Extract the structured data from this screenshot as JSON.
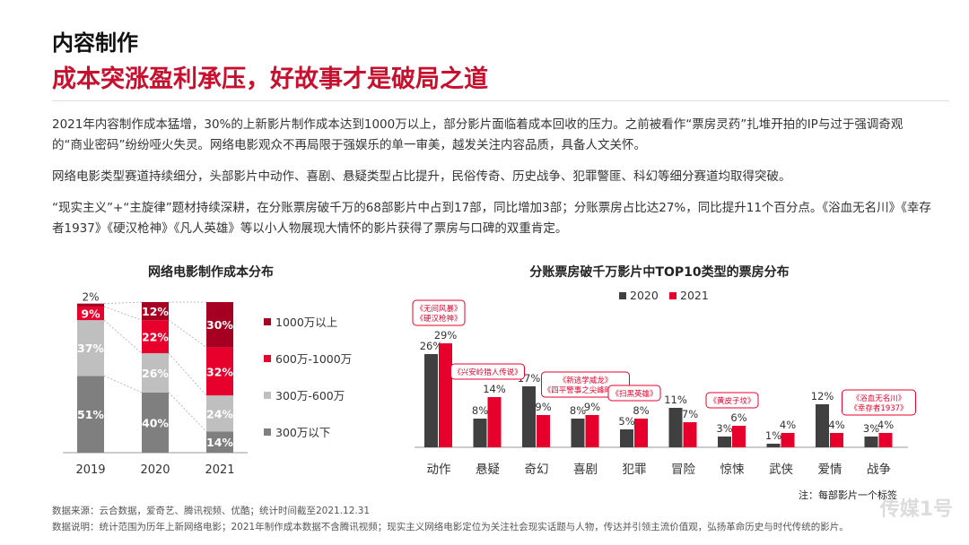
{
  "header": {
    "section": "内容制作",
    "headline": "成本突涨盈利承压，好故事才是破局之道"
  },
  "paragraphs": [
    "2021年内容制作成本猛增，30%的上新影片制作成本达到1000万以上，部分影片面临着成本回收的压力。之前被看作“票房灵药”扎堆开拍的IP与过于强调奇观的“商业密码”纷纷哑火失灵。网络电影观众不再局限于强娱乐的单一审美，越发关注内容品质，具备人文关怀。",
    "网络电影类型赛道持续细分，头部影片中动作、喜剧、悬疑类型占比提升，民俗传奇、历史战争、犯罪警匪、科幻等细分赛道均取得突破。",
    "“现实主义”+“主旋律”题材持续深耕，在分账票房破千万的68部影片中占到17部，同比增加3部；分账票房占比达27%，同比提升11个百分点。《浴血无名川》《幸存者1937》《硬汉枪神》《凡人英雄》等以小人物展现大情怀的影片获得了票房与口碑的双重肯定。"
  ],
  "chart_data": [
    {
      "type": "bar",
      "stacked": true,
      "title": "网络电影制作成本分布",
      "categories": [
        "2019",
        "2020",
        "2021"
      ],
      "series": [
        {
          "name": "300万以下",
          "values": [
            51,
            40,
            14
          ],
          "labels": [
            "51%",
            "40%",
            "14%"
          ],
          "color": "#7f7f7f"
        },
        {
          "name": "300万-600万",
          "values": [
            37,
            26,
            24
          ],
          "labels": [
            "37%",
            "26%",
            "24%"
          ],
          "color": "#bfbfbf"
        },
        {
          "name": "600万-1000万",
          "values": [
            9,
            22,
            32
          ],
          "labels": [
            "9%",
            "22%",
            "32%"
          ],
          "color": "#e8002d"
        },
        {
          "name": "1000万以上",
          "values": [
            2,
            12,
            30
          ],
          "labels": [
            "2%",
            "12%",
            "30%"
          ],
          "color": "#a50021"
        }
      ],
      "ylim": [
        0,
        100
      ],
      "legend": "right"
    },
    {
      "type": "bar",
      "title": "分账票房破千万影片中TOP10类型的票房分布",
      "categories": [
        "动作",
        "悬疑",
        "奇幻",
        "喜剧",
        "犯罪",
        "冒险",
        "惊悚",
        "武侠",
        "爱情",
        "战争"
      ],
      "series": [
        {
          "name": "2020",
          "values": [
            26,
            8,
            17,
            8,
            5,
            11,
            3,
            1,
            12,
            3
          ],
          "labels": [
            "26%",
            "8%",
            "17%",
            "8%",
            "5%",
            "11%",
            "3%",
            "1%",
            "12%",
            "3%"
          ],
          "color": "#404040"
        },
        {
          "name": "2021",
          "values": [
            29,
            14,
            9,
            9,
            8,
            7,
            6,
            4,
            4,
            4
          ],
          "labels": [
            "29%",
            "14%",
            "9%",
            "9%",
            "8%",
            "7%",
            "6%",
            "4%",
            "4%",
            "4%"
          ],
          "color": "#e8002d"
        }
      ],
      "ylim": [
        0,
        30
      ],
      "legend": "top",
      "annotations": [
        {
          "category": "动作",
          "lines": [
            "《无间风暴》",
            "《硬汉枪神》"
          ]
        },
        {
          "category": "悬疑",
          "lines": [
            "《兴安岭猎人传说》"
          ]
        },
        {
          "category": "喜剧",
          "lines": [
            "《新逃学威龙》",
            "《四平警事之尖峰时刻》"
          ]
        },
        {
          "category": "犯罪",
          "lines": [
            "《扫黑英雄》"
          ]
        },
        {
          "category": "惊悚",
          "lines": [
            "《黄皮子坟》"
          ]
        },
        {
          "category": "战争",
          "lines": [
            "《浴血无名川》",
            "《幸存者1937》"
          ]
        }
      ],
      "note": "注：每部影片一个标签"
    }
  ],
  "footer": {
    "source": "数据来源：云合数据，爱奇艺、腾讯视频、优酷；统计时间截至2021.12.31",
    "explanation": "数据说明：统计范围为历年上新网络电影；2021年制作成本数据不含腾讯视频；现实主义网络电影定位为关注社会现实话题与人物，传达并引领主流价值观，弘扬革命历史与时代传统的影片。"
  },
  "watermark": "传媒1号"
}
